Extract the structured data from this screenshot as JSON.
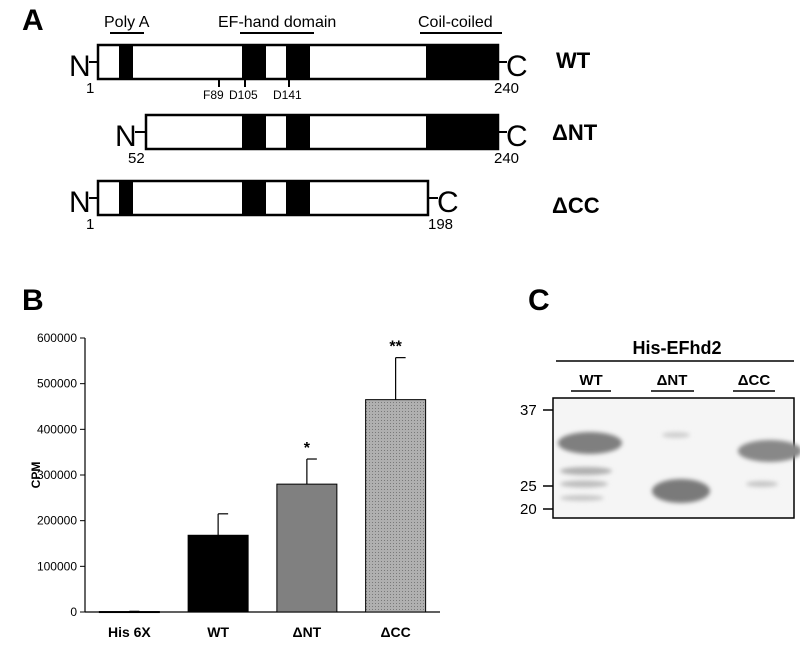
{
  "panel_a": {
    "letter": "A",
    "domain_labels": {
      "poly_a": "Poly A",
      "ef_hand": "EF-hand domain",
      "coil": "Coil-coiled"
    },
    "terminals": {
      "n": "N",
      "c": "C"
    },
    "mutations": [
      "F89",
      "D105",
      "D141"
    ],
    "constructs": [
      {
        "name": "WT",
        "start": "1",
        "end": "240"
      },
      {
        "name": "ΔNT",
        "start": "52",
        "end": "240"
      },
      {
        "name": "ΔCC",
        "start": "1",
        "end": "198"
      }
    ]
  },
  "panel_b": {
    "letter": "B",
    "significance": [
      "*",
      "**"
    ]
  },
  "panel_c": {
    "letter": "C",
    "title": "His-EFhd2",
    "lanes": [
      "WT",
      "ΔNT",
      "ΔCC"
    ],
    "markers": [
      "37",
      "25",
      "20"
    ]
  },
  "colors": {
    "his6x": "#000000",
    "wt": "#000000",
    "dnt": "#808080",
    "dcc": "#a9a9a9",
    "band": "#8a8a8a"
  },
  "chart_data": {
    "type": "bar",
    "categories": [
      "His 6X",
      "WT",
      "ΔNT",
      "ΔCC"
    ],
    "values": [
      1000,
      168000,
      280000,
      465000
    ],
    "errors": [
      500,
      47000,
      55000,
      92000
    ],
    "annotations": [
      "",
      "",
      "*",
      "**"
    ],
    "ylabel": "CPM",
    "ylim": [
      0,
      600000
    ],
    "yticks": [
      "0",
      "100000",
      "200000",
      "300000",
      "400000",
      "500000",
      "600000"
    ],
    "grid": false
  }
}
